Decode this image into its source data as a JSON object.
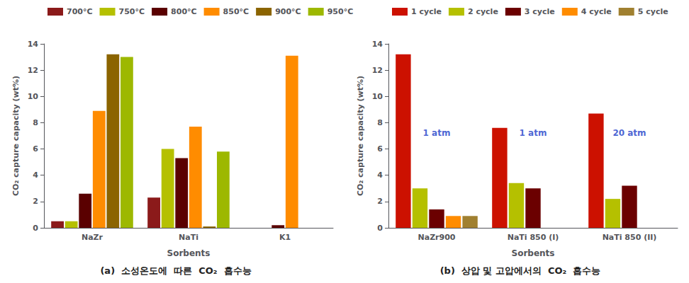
{
  "chart_data": [
    {
      "type": "bar",
      "title": "(a)  소성온도에  따른  CO₂  흡수능",
      "xlabel": "Sorbents",
      "ylabel": "CO₂ capture capacity (wt%)",
      "categories": [
        "NaZr",
        "NaTi",
        "K1"
      ],
      "series": [
        {
          "name": "700°C",
          "color": "#8b1a1a",
          "values": [
            0.5,
            2.3,
            0.0
          ]
        },
        {
          "name": "750°C",
          "color": "#b5c000",
          "values": [
            0.5,
            6.0,
            0.0
          ]
        },
        {
          "name": "800°C",
          "color": "#5a0000",
          "values": [
            2.6,
            5.3,
            0.2
          ]
        },
        {
          "name": "850°C",
          "color": "#ff8c00",
          "values": [
            8.9,
            7.7,
            13.1
          ]
        },
        {
          "name": "900°C",
          "color": "#8b6400",
          "values": [
            13.2,
            0.1,
            0.0
          ]
        },
        {
          "name": "950°C",
          "color": "#9db800",
          "values": [
            13.0,
            5.8,
            0.0
          ]
        }
      ],
      "ylim": [
        0,
        14
      ],
      "yticks": [
        0,
        2,
        4,
        6,
        8,
        10,
        12,
        14
      ],
      "grid": false,
      "legend": "upper right"
    },
    {
      "type": "bar",
      "title": "(b)  상압 및 고압에서의  CO₂  흡수능",
      "xlabel": "Sorbents",
      "ylabel": "CO₂ capture capacity (wt%)",
      "categories": [
        "NaZr900",
        "NaTi 850 (I)",
        "NaTi 850 (II)"
      ],
      "series": [
        {
          "name": "1 cycle",
          "color": "#cc1100",
          "values": [
            13.2,
            7.6,
            8.7
          ]
        },
        {
          "name": "2 cycle",
          "color": "#b5c000",
          "values": [
            3.0,
            3.4,
            2.2
          ]
        },
        {
          "name": "3 cycle",
          "color": "#6b0000",
          "values": [
            1.4,
            3.0,
            3.2
          ]
        },
        {
          "name": "4 cycle",
          "color": "#ff8c00",
          "values": [
            0.9,
            0.0,
            0.0
          ]
        },
        {
          "name": "5 cycle",
          "color": "#a08030",
          "values": [
            0.9,
            0.0,
            0.0
          ]
        }
      ],
      "annotations": [
        {
          "text": "1 atm",
          "x": "NaZr900",
          "y": 7.2,
          "color": "#1a3cc8"
        },
        {
          "text": "1 atm",
          "x": "NaTi 850 (I)",
          "y": 7.2,
          "color": "#1a3cc8"
        },
        {
          "text": "20 atm",
          "x": "NaTi 850 (II)",
          "y": 7.2,
          "color": "#1a3cc8"
        }
      ],
      "ylim": [
        0,
        14
      ],
      "yticks": [
        0,
        2,
        4,
        6,
        8,
        10,
        12,
        14
      ],
      "grid": false,
      "legend": "upper right"
    }
  ]
}
